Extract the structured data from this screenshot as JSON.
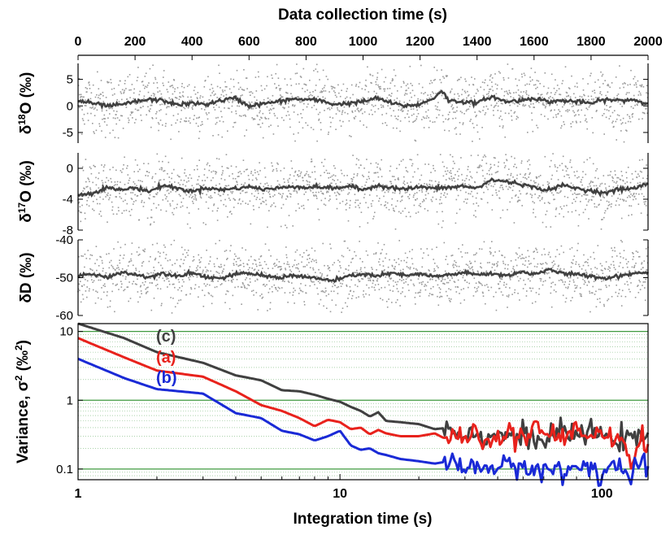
{
  "figure": {
    "top_axis_title": "Data collection time (s)",
    "bottom_axis_title": "Integration time (s)"
  },
  "chart_data": [
    {
      "type": "scatter",
      "panel": "d18O",
      "ylabel": "δ18O (‰)",
      "x_title": "Data collection time (s)",
      "xlim": [
        0,
        2000
      ],
      "xticks": [
        "0",
        "200",
        "400",
        "600",
        "800",
        "1000",
        "1200",
        "1400",
        "1600",
        "1800",
        "2000"
      ],
      "ylim": [
        -7,
        8
      ],
      "yticks": [
        "5",
        "0",
        "-5"
      ],
      "raw_spread": 3.0,
      "colors": {
        "raw": "#9a9a9a",
        "smooth": "#404040"
      },
      "smoothed_series": {
        "x": [
          0,
          50,
          100,
          150,
          200,
          250,
          300,
          350,
          400,
          450,
          500,
          550,
          600,
          650,
          700,
          750,
          800,
          850,
          900,
          950,
          1000,
          1050,
          1100,
          1150,
          1200,
          1250,
          1275,
          1300,
          1350,
          1400,
          1450,
          1500,
          1550,
          1600,
          1650,
          1700,
          1750,
          1800,
          1850,
          1900,
          1950,
          2000
        ],
        "values": [
          1.0,
          0.5,
          0.0,
          0.2,
          0.8,
          1.2,
          1.0,
          0.2,
          0.5,
          0.3,
          1.0,
          1.5,
          0.0,
          0.4,
          0.8,
          1.3,
          1.2,
          1.0,
          0.3,
          0.5,
          0.8,
          1.5,
          0.5,
          0.0,
          0.3,
          1.5,
          3.0,
          1.0,
          0.8,
          0.5,
          1.8,
          0.8,
          1.0,
          1.5,
          0.8,
          1.0,
          0.8,
          0.5,
          1.2,
          1.0,
          1.2,
          0.3
        ]
      }
    },
    {
      "type": "scatter",
      "panel": "d17O",
      "ylabel": "δ17O (‰)",
      "xlim": [
        0,
        2000
      ],
      "ylim": [
        -8,
        2
      ],
      "yticks": [
        "0",
        "-4",
        "-8"
      ],
      "raw_spread": 2.0,
      "colors": {
        "raw": "#9a9a9a",
        "smooth": "#404040"
      },
      "smoothed_series": {
        "x": [
          0,
          50,
          100,
          150,
          200,
          250,
          300,
          350,
          400,
          450,
          500,
          550,
          600,
          650,
          700,
          750,
          800,
          850,
          900,
          950,
          1000,
          1050,
          1100,
          1150,
          1200,
          1250,
          1300,
          1350,
          1400,
          1450,
          1500,
          1550,
          1600,
          1650,
          1700,
          1750,
          1800,
          1850,
          1900,
          1950,
          2000
        ],
        "values": [
          -3.5,
          -3.2,
          -2.5,
          -2.8,
          -2.5,
          -3.0,
          -2.2,
          -2.6,
          -3.0,
          -2.5,
          -2.8,
          -2.6,
          -2.4,
          -2.7,
          -2.6,
          -2.3,
          -2.5,
          -2.4,
          -2.6,
          -2.3,
          -2.8,
          -2.2,
          -2.5,
          -2.7,
          -2.4,
          -2.6,
          -2.5,
          -2.3,
          -2.6,
          -1.5,
          -1.7,
          -2.0,
          -2.5,
          -2.8,
          -2.2,
          -2.6,
          -2.9,
          -3.2,
          -2.7,
          -2.6,
          -2.0
        ]
      }
    },
    {
      "type": "scatter",
      "panel": "dD",
      "ylabel": "δD (‰)",
      "xlim": [
        0,
        2000
      ],
      "ylim": [
        -60,
        -40
      ],
      "yticks": [
        "-40",
        "-50",
        "-60"
      ],
      "raw_spread": 4.0,
      "colors": {
        "raw": "#9a9a9a",
        "smooth": "#404040"
      },
      "smoothed_series": {
        "x": [
          0,
          50,
          100,
          150,
          200,
          250,
          300,
          350,
          400,
          450,
          500,
          550,
          600,
          650,
          700,
          750,
          800,
          850,
          900,
          950,
          1000,
          1050,
          1100,
          1150,
          1200,
          1250,
          1300,
          1350,
          1400,
          1450,
          1500,
          1550,
          1600,
          1650,
          1700,
          1750,
          1800,
          1850,
          1900,
          1950,
          2000
        ],
        "values": [
          -49.5,
          -49.0,
          -50.0,
          -48.5,
          -49.2,
          -49.8,
          -48.8,
          -49.5,
          -48.7,
          -49.8,
          -50.2,
          -49.2,
          -48.8,
          -49.5,
          -50.0,
          -49.4,
          -49.8,
          -50.4,
          -50.8,
          -49.6,
          -49.0,
          -49.6,
          -48.8,
          -49.5,
          -49.0,
          -49.8,
          -49.2,
          -48.7,
          -49.2,
          -48.9,
          -49.5,
          -48.5,
          -49.0,
          -48.0,
          -48.8,
          -49.2,
          -49.6,
          -50.2,
          -49.5,
          -48.8,
          -48.6
        ]
      }
    },
    {
      "type": "line",
      "panel": "variance",
      "ylabel": "Variance, σ2 (‰2)",
      "xlabel": "Integration time (s)",
      "x_scale": "log",
      "y_scale": "log",
      "xlim": [
        1,
        150
      ],
      "ylim": [
        0.07,
        13
      ],
      "xticks": [
        "1",
        "10",
        "100"
      ],
      "yticks": [
        "10",
        "1",
        "0.1"
      ],
      "grid": true,
      "grid_color": "#3f9a3f",
      "series": [
        {
          "name": "(c)",
          "color": "#404040",
          "x": [
            1,
            1.5,
            2,
            3,
            4,
            5,
            6,
            7,
            8,
            9,
            10,
            11,
            12,
            13,
            14,
            15,
            17,
            20,
            23,
            26,
            30,
            35,
            40,
            50,
            60,
            70,
            80,
            90,
            100,
            110,
            120,
            130,
            140,
            150
          ],
          "values": [
            13,
            8,
            5,
            3.5,
            2.3,
            1.95,
            1.4,
            1.35,
            1.2,
            1.05,
            0.95,
            0.8,
            0.7,
            0.58,
            0.67,
            0.5,
            0.48,
            0.45,
            0.38,
            0.4,
            0.33,
            0.3,
            0.32,
            0.3,
            0.25,
            0.35,
            0.3,
            0.36,
            0.28,
            0.33,
            0.26,
            0.24,
            0.3,
            0.37
          ]
        },
        {
          "name": "(a)",
          "color": "#e8221c",
          "x": [
            1,
            1.5,
            2,
            3,
            4,
            5,
            6,
            7,
            8,
            9,
            10,
            11,
            12,
            13,
            14,
            15,
            17,
            20,
            23,
            26,
            30,
            35,
            40,
            50,
            60,
            70,
            80,
            90,
            100,
            110,
            120,
            130,
            140,
            150
          ],
          "values": [
            8,
            4.2,
            2.7,
            2.2,
            1.35,
            0.85,
            0.7,
            0.55,
            0.42,
            0.52,
            0.48,
            0.38,
            0.4,
            0.32,
            0.37,
            0.33,
            0.3,
            0.3,
            0.33,
            0.26,
            0.3,
            0.28,
            0.3,
            0.3,
            0.38,
            0.25,
            0.42,
            0.28,
            0.45,
            0.22,
            0.3,
            0.09,
            0.35,
            0.2
          ]
        },
        {
          "name": "(b)",
          "color": "#1a2ad6",
          "x": [
            1,
            1.5,
            2,
            3,
            4,
            5,
            6,
            7,
            8,
            9,
            10,
            11,
            12,
            13,
            14,
            15,
            17,
            20,
            23,
            26,
            30,
            35,
            40,
            50,
            60,
            70,
            80,
            90,
            100,
            110,
            120,
            130,
            140,
            150
          ],
          "values": [
            4,
            2.1,
            1.45,
            1.25,
            0.65,
            0.55,
            0.36,
            0.32,
            0.26,
            0.3,
            0.36,
            0.22,
            0.19,
            0.2,
            0.17,
            0.16,
            0.14,
            0.13,
            0.12,
            0.13,
            0.1,
            0.12,
            0.1,
            0.11,
            0.1,
            0.09,
            0.1,
            0.12,
            0.08,
            0.12,
            0.1,
            0.07,
            0.13,
            0.08
          ]
        }
      ]
    }
  ]
}
